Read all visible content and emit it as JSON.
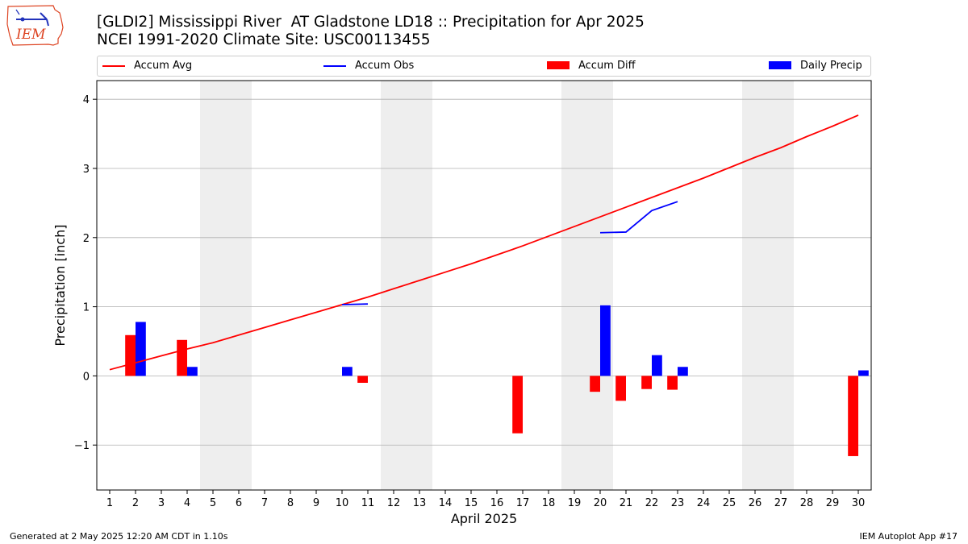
{
  "logo": {
    "text": "IEM"
  },
  "title_line1": "[GLDI2] Mississippi River  AT Gladstone LD18 :: Precipitation for Apr 2025",
  "title_line2": "NCEI 1991-2020 Climate Site: USC00113455",
  "footer": {
    "generated": "Generated at 2 May 2025 12:20 AM CDT in 1.10s",
    "app": "IEM Autoplot App #17"
  },
  "colors": {
    "accum_avg": "#ff0000",
    "accum_obs": "#0000ff",
    "accum_diff": "#ff0000",
    "daily_precip": "#0000ff",
    "weekend_band": "#eeeeee",
    "grid": "#b0b0b0"
  },
  "chart_data": {
    "type": "bar",
    "xlabel": "April 2025",
    "ylabel": "Precipitation [inch]",
    "xlim": [
      0.5,
      30.5
    ],
    "ylim": [
      -1.65,
      4.27
    ],
    "xticks": [
      1,
      2,
      3,
      4,
      5,
      6,
      7,
      8,
      9,
      10,
      11,
      12,
      13,
      14,
      15,
      16,
      17,
      18,
      19,
      20,
      21,
      22,
      23,
      24,
      25,
      26,
      27,
      28,
      29,
      30
    ],
    "yticks": [
      -1,
      0,
      1,
      2,
      3,
      4
    ],
    "ytick_labels": [
      "−1",
      "0",
      "1",
      "2",
      "3",
      "4"
    ],
    "grid": "y",
    "legend_position": "top, above plot",
    "legend": [
      "Accum Avg",
      "Accum Obs",
      "Accum Diff",
      "Daily Precip"
    ],
    "weekend_bands": [
      [
        4.5,
        6.5
      ],
      [
        11.5,
        13.5
      ],
      [
        18.5,
        20.5
      ],
      [
        25.5,
        27.5
      ]
    ],
    "series": [
      {
        "name": "Accum Avg",
        "kind": "line",
        "x": [
          1,
          2,
          3,
          4,
          5,
          6,
          7,
          8,
          9,
          10,
          11,
          12,
          13,
          14,
          15,
          16,
          17,
          18,
          19,
          20,
          21,
          22,
          23,
          24,
          25,
          26,
          27,
          28,
          29,
          30
        ],
        "values": [
          0.09,
          0.19,
          0.29,
          0.39,
          0.48,
          0.59,
          0.7,
          0.81,
          0.92,
          1.03,
          1.14,
          1.26,
          1.38,
          1.5,
          1.62,
          1.75,
          1.88,
          2.02,
          2.16,
          2.3,
          2.44,
          2.58,
          2.72,
          2.86,
          3.01,
          3.16,
          3.3,
          3.46,
          3.61,
          3.77
        ]
      },
      {
        "name": "Accum Obs",
        "kind": "line",
        "segments": [
          {
            "x": [
              10,
              11
            ],
            "values": [
              1.03,
              1.04
            ]
          },
          {
            "x": [
              20,
              21,
              22,
              23
            ],
            "values": [
              2.07,
              2.08,
              2.39,
              2.52
            ]
          }
        ]
      },
      {
        "name": "Accum Diff",
        "kind": "bar",
        "offset": -0.2,
        "x": [
          2,
          4,
          11,
          17,
          20,
          21,
          22,
          23,
          30
        ],
        "values": [
          0.59,
          0.52,
          -0.1,
          -0.83,
          -0.23,
          -0.36,
          -0.19,
          -0.2,
          -1.16
        ]
      },
      {
        "name": "Daily Precip",
        "kind": "bar",
        "offset": 0.2,
        "x": [
          2,
          4,
          10,
          20,
          22,
          23,
          30
        ],
        "values": [
          0.78,
          0.13,
          0.13,
          1.02,
          0.3,
          0.13,
          0.08
        ]
      }
    ]
  }
}
